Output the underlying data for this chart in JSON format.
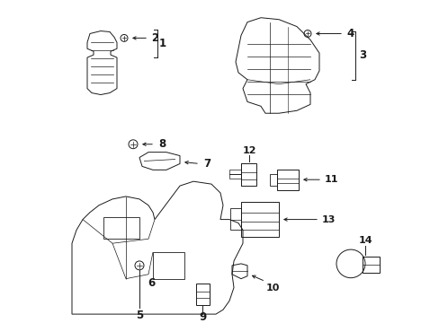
{
  "bg_color": "#ffffff",
  "fg_color": "#1a1a1a",
  "figsize": [
    4.89,
    3.6
  ],
  "dpi": 100,
  "lw": 0.7
}
